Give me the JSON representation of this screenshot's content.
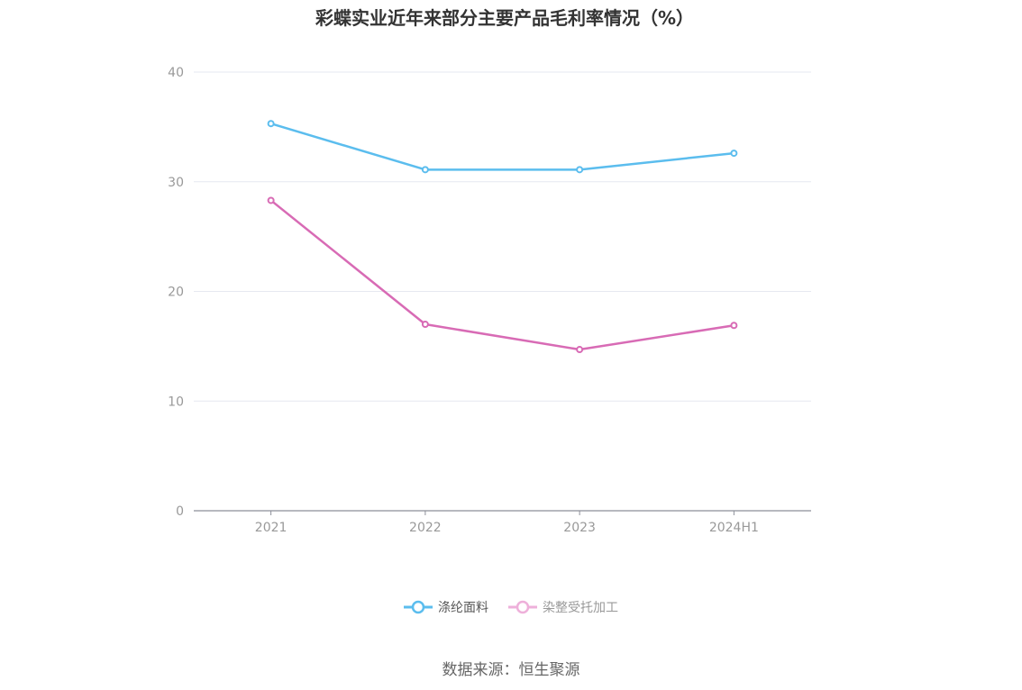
{
  "chart_data": {
    "type": "line",
    "title": "彩蝶实业近年来部分主要产品毛利率情况（%）",
    "categories": [
      "2021",
      "2022",
      "2023",
      "2024H1"
    ],
    "ylim": [
      0,
      40
    ],
    "yticks": [
      0,
      10,
      20,
      30,
      40
    ],
    "grid": true,
    "legend_position": "bottom",
    "series": [
      {
        "name": "涤纶面料",
        "values": [
          35.3,
          31.1,
          31.1,
          32.6
        ],
        "color": "#5bbdee"
      },
      {
        "name": "染整受托加工",
        "values": [
          28.3,
          17.0,
          14.7,
          16.9
        ],
        "color": "#d86bb5"
      }
    ]
  },
  "source": "数据来源：恒生聚源"
}
